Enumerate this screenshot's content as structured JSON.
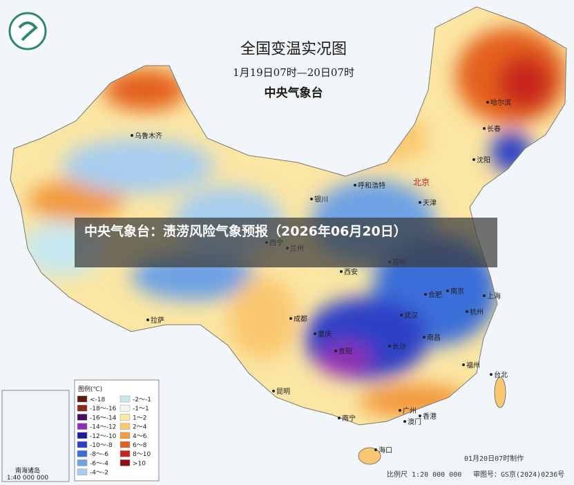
{
  "map": {
    "title": "全国变温实况图",
    "period": "1月19日07时—20日07时",
    "agency": "中央气象台",
    "cities": {
      "capital": "北京",
      "others": [
        "乌鲁木齐",
        "哈尔滨",
        "长春",
        "沈阳",
        "天津",
        "呼和浩特",
        "银川",
        "西宁",
        "兰州",
        "西安",
        "郑州",
        "合肥",
        "南京",
        "上海",
        "杭州",
        "武汉",
        "长沙",
        "南昌",
        "福州",
        "台北",
        "成都",
        "重庆",
        "贵阳",
        "拉萨",
        "昆明",
        "南宁",
        "广州",
        "澳门",
        "香港",
        "海口"
      ]
    },
    "legend": {
      "title": "图例(℃)",
      "items": [
        {
          "label": "<-18",
          "color": "#5b1a12"
        },
        {
          "label": "-18～-16",
          "color": "#8c2a1c"
        },
        {
          "label": "-16～-14",
          "color": "#4a1060"
        },
        {
          "label": "-14～-12",
          "color": "#8e2fb4"
        },
        {
          "label": "-12～-10",
          "color": "#1c1c9a"
        },
        {
          "label": "-10～-8",
          "color": "#2e3fc6"
        },
        {
          "label": "-8～-6",
          "color": "#3a6ed8"
        },
        {
          "label": "-6～-4",
          "color": "#6ea2e4"
        },
        {
          "label": "-4～-2",
          "color": "#a8cdee"
        },
        {
          "label": "-2～-1",
          "color": "#c8e8f0"
        },
        {
          "label": "-1～1",
          "color": "#f4f7f0"
        },
        {
          "label": "1～2",
          "color": "#fbe6a4"
        },
        {
          "label": "2～4",
          "color": "#f9c870"
        },
        {
          "label": "4～6",
          "color": "#f29a3c"
        },
        {
          "label": "6～8",
          "color": "#e4601e"
        },
        {
          "label": "8～10",
          "color": "#c8261a"
        },
        {
          "label": ">10",
          "color": "#8e0e10"
        }
      ]
    },
    "inset": {
      "title": "南海诸岛",
      "scale": "1:40 000 000"
    },
    "made": "01月20日07时制作",
    "scale": "比例尺 1:20 000 000",
    "approval": "审图号：GS京(2024)0236号"
  },
  "overlay": {
    "caption": "中央气象台：渍涝风险气象预报（2026年06月20日）"
  }
}
